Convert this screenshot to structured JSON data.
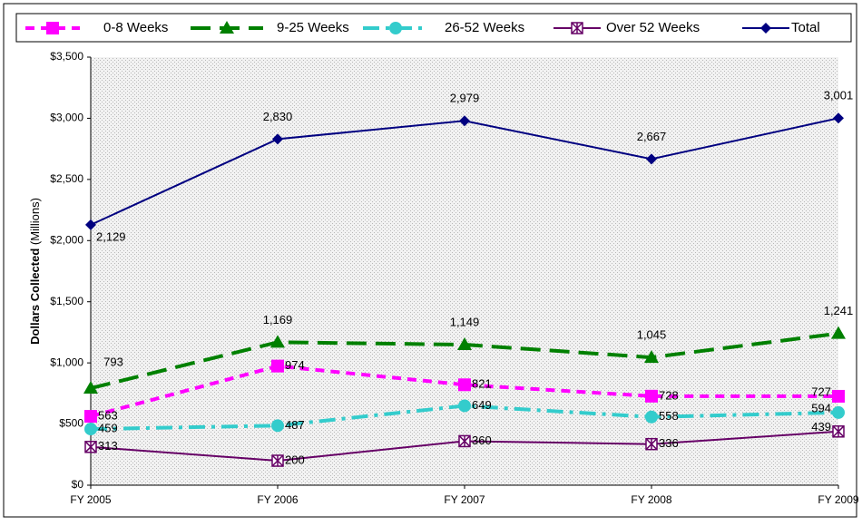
{
  "chart_data": {
    "type": "line",
    "y_label": "Dollars Collected",
    "y_label_unit": "(Millions)",
    "categories": [
      "FY 2005",
      "FY 2006",
      "FY 2007",
      "FY 2008",
      "FY 2009"
    ],
    "series": [
      {
        "name": "0-8 Weeks",
        "color": "#ff00ff",
        "line_style": "dash",
        "marker": "square",
        "values": [
          563,
          974,
          821,
          728,
          727
        ],
        "value_labels": [
          "563",
          "974",
          "821",
          "728",
          "727"
        ]
      },
      {
        "name": "9-25 Weeks",
        "color": "#008000",
        "line_style": "long-dash",
        "marker": "triangle",
        "values": [
          793,
          1169,
          1149,
          1045,
          1241
        ],
        "value_labels": [
          "793",
          "1,169",
          "1,149",
          "1,045",
          "1,241"
        ]
      },
      {
        "name": "26-52 Weeks",
        "color": "#33cccc",
        "line_style": "dash-dot",
        "marker": "circle",
        "values": [
          459,
          487,
          649,
          558,
          594
        ],
        "value_labels": [
          "459",
          "487",
          "649",
          "558",
          "594"
        ]
      },
      {
        "name": "Over 52 Weeks",
        "color": "#660066",
        "line_style": "solid",
        "marker": "x-square",
        "values": [
          313,
          200,
          360,
          336,
          439
        ],
        "value_labels": [
          "313",
          "200",
          "360",
          "336",
          "439"
        ]
      },
      {
        "name": "Total",
        "color": "#000080",
        "line_style": "solid",
        "marker": "diamond",
        "values": [
          2129,
          2830,
          2979,
          2667,
          3001
        ],
        "value_labels": [
          "2,129",
          "2,830",
          "2,979",
          "2,667",
          "3,001"
        ]
      }
    ],
    "ylim": [
      0,
      3500
    ],
    "yticks": [
      {
        "value": 0,
        "label": "$0"
      },
      {
        "value": 500,
        "label": "$500"
      },
      {
        "value": 1000,
        "label": "$1,000"
      },
      {
        "value": 1500,
        "label": "$1,500"
      },
      {
        "value": 2000,
        "label": "$2,000"
      },
      {
        "value": 2500,
        "label": "$2,500"
      },
      {
        "value": 3000,
        "label": "$3,000"
      },
      {
        "value": 3500,
        "label": "$3,500"
      }
    ],
    "grid": false,
    "legend": "top"
  }
}
